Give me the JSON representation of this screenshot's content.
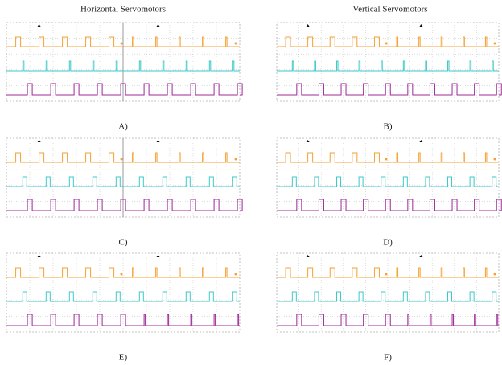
{
  "headers": [
    "Horizontal Servomotors",
    "Vertical Servomotors"
  ],
  "panels": [
    {
      "label": "A)"
    },
    {
      "label": "B)"
    },
    {
      "label": "C)"
    },
    {
      "label": "D)"
    },
    {
      "label": "E)"
    },
    {
      "label": "F)"
    }
  ]
}
